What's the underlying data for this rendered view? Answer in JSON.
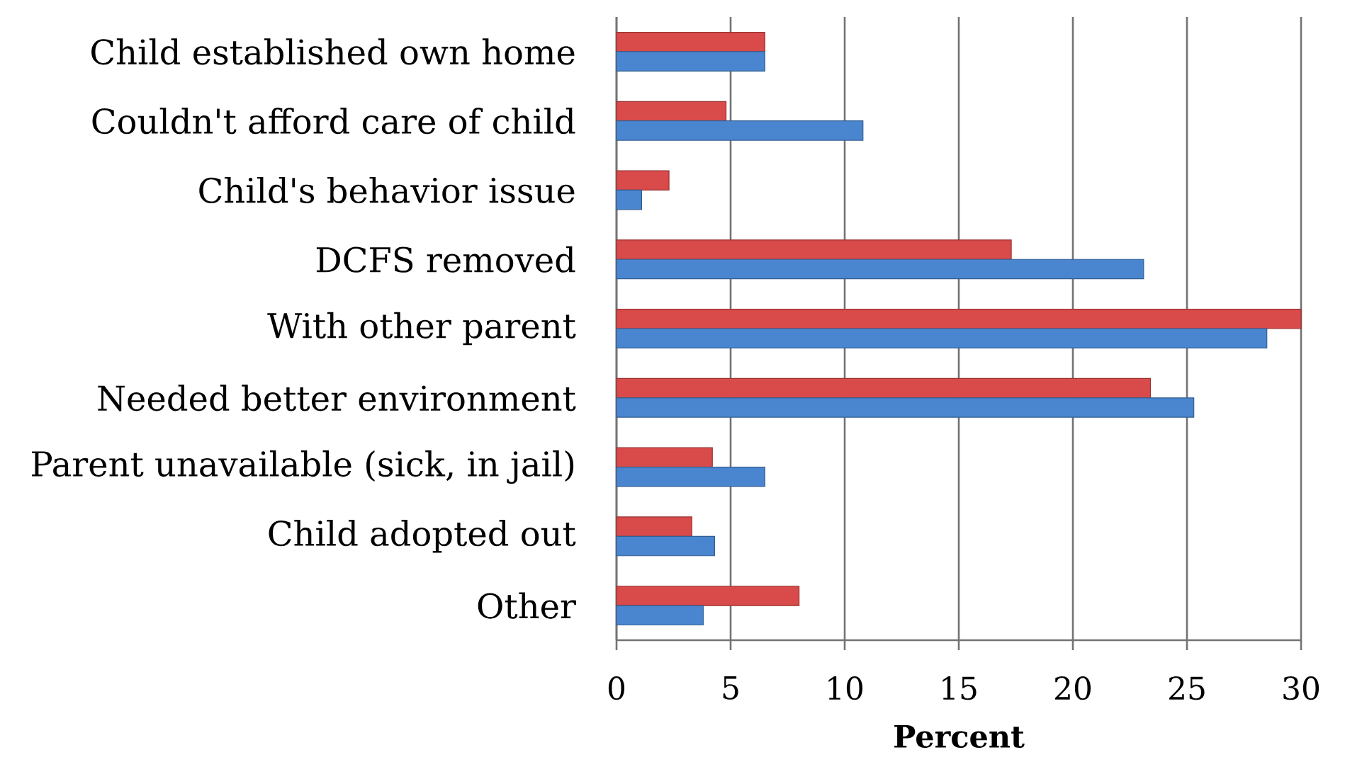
{
  "chart_data": {
    "type": "bar",
    "orientation": "horizontal",
    "categories": [
      "Child established own home",
      "Couldn't afford care of child",
      "Child's behavior issue",
      "DCFS removed",
      "With other parent",
      "Needed better environment",
      "Parent unavailable (sick, in jail)",
      "Child adopted out",
      "Other"
    ],
    "series": [
      {
        "color": "#d94a4a",
        "values": [
          6.5,
          4.8,
          2.3,
          17.3,
          30.0,
          23.4,
          4.2,
          3.3,
          8.0
        ]
      },
      {
        "color": "#4a86d0",
        "values": [
          6.5,
          10.8,
          1.1,
          23.1,
          28.5,
          25.3,
          6.5,
          4.3,
          3.8
        ]
      }
    ],
    "xlabel": "Percent",
    "xlim": [
      0,
      30
    ],
    "xticks": [
      0,
      5,
      10,
      15,
      20,
      25,
      30
    ],
    "grid": "x"
  }
}
